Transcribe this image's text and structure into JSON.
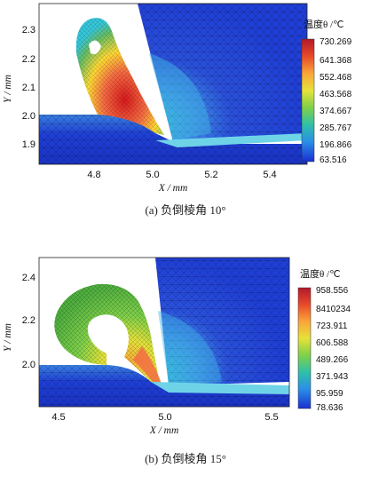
{
  "panels": [
    {
      "caption": "(a) 负倒棱角 10°",
      "xlabel": "X / mm",
      "ylabel": "Y / mm",
      "x_ticks": [
        "4.8",
        "5.0",
        "5.2",
        "5.4"
      ],
      "y_ticks": [
        "2.3",
        "2.2",
        "2.1",
        "2.0",
        "1.9"
      ],
      "colorbar_title": "温度θ /℃",
      "colorbar_labels": [
        "730.269",
        "641.368",
        "552.468",
        "463.568",
        "374.667",
        "285.767",
        "196.866",
        "63.516"
      ]
    },
    {
      "caption": "(b) 负倒棱角 15°",
      "xlabel": "X / mm",
      "ylabel": "Y / mm",
      "x_ticks": [
        "4.5",
        "5.0",
        "5.5"
      ],
      "y_ticks": [
        "2.4",
        "2.2",
        "2.0"
      ],
      "colorbar_title": "温度θ /℃",
      "colorbar_labels": [
        "958.556",
        "8410234",
        "723.911",
        "606.588",
        "489.266",
        "371.943",
        "95.959",
        "78.636"
      ]
    }
  ],
  "colors": {
    "hot": "#d7191c",
    "warm": "#f46d43",
    "mid": "#fdd835",
    "green": "#66bd63",
    "cyan": "#36c5d8",
    "cold": "#1f3fd6"
  }
}
